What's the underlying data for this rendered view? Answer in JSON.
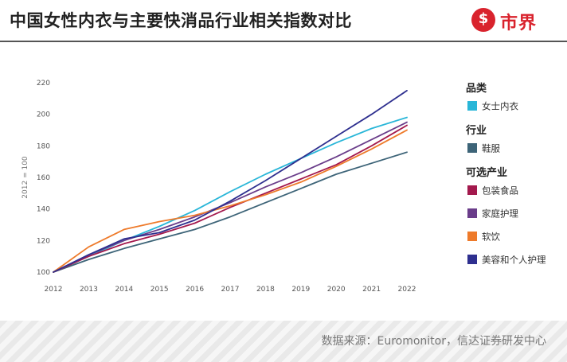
{
  "header": {
    "title": "中国女性内衣与主要快消品行业相关指数对比",
    "logo_text": "市界",
    "logo_glyph": "$",
    "brand_color": "#d9232d"
  },
  "footer": {
    "source": "数据来源：Euromonitor，信达证券研发中心"
  },
  "chart_data": {
    "type": "line",
    "ylabel": "2012 = 100",
    "xlabel": "",
    "ylim": [
      100,
      220
    ],
    "yticks": [
      100,
      120,
      140,
      160,
      180,
      200,
      220
    ],
    "x": [
      "2012",
      "2013",
      "2014",
      "2015",
      "2016",
      "2017",
      "2018",
      "2019",
      "2020",
      "2021",
      "2022"
    ],
    "highlight_x": "2016",
    "highlight_color": "#29b6d8",
    "grid": false,
    "legend_position": "right",
    "legend_groups": [
      {
        "heading": "品类",
        "series": [
          0
        ]
      },
      {
        "heading": "行业",
        "series": [
          1
        ]
      },
      {
        "heading": "可选产业",
        "series": [
          2,
          3,
          4,
          5
        ]
      }
    ],
    "series": [
      {
        "name": "女士内衣",
        "color": "#29b6d8",
        "values": [
          100,
          110,
          120,
          129,
          139,
          151,
          162,
          172,
          182,
          191,
          198
        ]
      },
      {
        "name": "鞋服",
        "color": "#3d6478",
        "values": [
          100,
          108,
          115,
          121,
          127,
          135,
          144,
          153,
          162,
          169,
          176
        ]
      },
      {
        "name": "包装食品",
        "color": "#a3194d",
        "values": [
          100,
          110,
          118,
          124,
          131,
          141,
          150,
          159,
          168,
          180,
          193
        ]
      },
      {
        "name": "家庭护理",
        "color": "#6a3d8a",
        "values": [
          100,
          111,
          120,
          127,
          135,
          144,
          154,
          163,
          173,
          184,
          195
        ]
      },
      {
        "name": "软饮",
        "color": "#ee7a2a",
        "values": [
          100,
          116,
          127,
          132,
          136,
          142,
          149,
          157,
          167,
          178,
          190
        ]
      },
      {
        "name": "美容和个人护理",
        "color": "#2e2f8f",
        "values": [
          100,
          111,
          121,
          125,
          133,
          145,
          158,
          172,
          186,
          200,
          215
        ]
      }
    ]
  }
}
